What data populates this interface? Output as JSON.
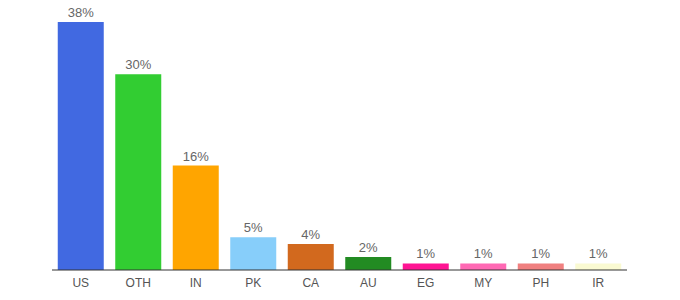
{
  "chart_data": {
    "type": "bar",
    "categories": [
      "US",
      "OTH",
      "IN",
      "PK",
      "CA",
      "AU",
      "EG",
      "MY",
      "PH",
      "IR"
    ],
    "values": [
      38,
      30,
      16,
      5,
      4,
      2,
      1,
      1,
      1,
      1
    ],
    "value_labels": [
      "38%",
      "30%",
      "16%",
      "5%",
      "4%",
      "2%",
      "1%",
      "1%",
      "1%",
      "1%"
    ],
    "colors": [
      "#4169e1",
      "#32cd32",
      "#ffa500",
      "#87cefa",
      "#d2691e",
      "#228b22",
      "#ff1493",
      "#ff69b4",
      "#f08080",
      "#fafad2"
    ],
    "data_labels": true,
    "tick_labels": "x",
    "grid": false
  }
}
